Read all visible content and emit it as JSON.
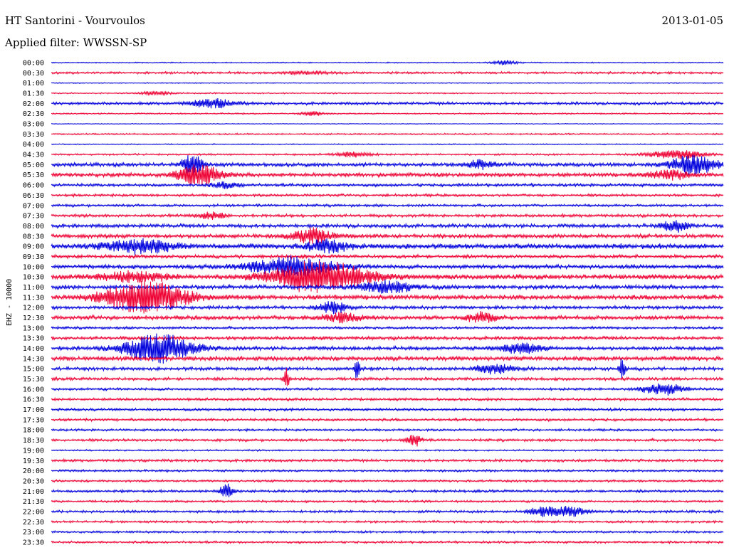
{
  "header": {
    "station": "HT Santorini - Vourvoulos",
    "date": "2013-01-05",
    "filter": "Applied filter: WWSSN-SP"
  },
  "chart_data": {
    "type": "line",
    "title": "HT Santorini - Vourvoulos",
    "ylabel": "EHZ - 10000",
    "row_labels": [
      "00:00",
      "00:30",
      "01:00",
      "01:30",
      "02:00",
      "02:30",
      "03:00",
      "03:30",
      "04:00",
      "04:30",
      "05:00",
      "05:30",
      "06:00",
      "06:30",
      "07:00",
      "07:30",
      "08:00",
      "08:30",
      "09:00",
      "09:30",
      "10:00",
      "10:30",
      "11:00",
      "11:30",
      "12:00",
      "12:30",
      "13:00",
      "13:30",
      "14:00",
      "14:30",
      "15:00",
      "15:30",
      "16:00",
      "16:30",
      "17:00",
      "17:30",
      "18:00",
      "18:30",
      "19:00",
      "19:30",
      "20:00",
      "20:30",
      "21:00",
      "21:30",
      "22:00",
      "22:30",
      "23:00",
      "23:30"
    ],
    "colors": [
      "#0000dd",
      "#ee0033"
    ],
    "grid": false,
    "row_noise": [
      0.6,
      1.2,
      0.5,
      0.7,
      1.5,
      0.8,
      0.4,
      0.8,
      0.6,
      1.0,
      2.0,
      2.2,
      1.6,
      1.4,
      1.4,
      1.6,
      2.0,
      2.2,
      2.8,
      1.8,
      2.2,
      2.6,
      2.2,
      2.6,
      1.8,
      2.2,
      1.4,
      1.8,
      2.0,
      2.4,
      1.8,
      1.6,
      1.4,
      1.4,
      1.4,
      1.4,
      1.2,
      1.4,
      0.9,
      1.4,
      1.2,
      1.2,
      1.4,
      1.2,
      1.4,
      1.2,
      1.2,
      1.2
    ],
    "events": [
      {
        "row": 0,
        "t": 0.675,
        "amp": 3,
        "dur": 0.02
      },
      {
        "row": 1,
        "t": 0.38,
        "amp": 2,
        "dur": 0.03
      },
      {
        "row": 3,
        "t": 0.155,
        "amp": 3,
        "dur": 0.02
      },
      {
        "row": 4,
        "t": 0.24,
        "amp": 6,
        "dur": 0.03
      },
      {
        "row": 5,
        "t": 0.39,
        "amp": 3,
        "dur": 0.015
      },
      {
        "row": 9,
        "t": 0.45,
        "amp": 4,
        "dur": 0.025
      },
      {
        "row": 9,
        "t": 0.93,
        "amp": 6,
        "dur": 0.04
      },
      {
        "row": 10,
        "t": 0.21,
        "amp": 14,
        "dur": 0.015
      },
      {
        "row": 10,
        "t": 0.64,
        "amp": 6,
        "dur": 0.02
      },
      {
        "row": 10,
        "t": 0.955,
        "amp": 13,
        "dur": 0.035
      },
      {
        "row": 11,
        "t": 0.22,
        "amp": 15,
        "dur": 0.03
      },
      {
        "row": 11,
        "t": 0.92,
        "amp": 6,
        "dur": 0.03
      },
      {
        "row": 12,
        "t": 0.26,
        "amp": 4,
        "dur": 0.02
      },
      {
        "row": 15,
        "t": 0.24,
        "amp": 5,
        "dur": 0.02
      },
      {
        "row": 16,
        "t": 0.93,
        "amp": 8,
        "dur": 0.02
      },
      {
        "row": 17,
        "t": 0.39,
        "amp": 10,
        "dur": 0.03
      },
      {
        "row": 18,
        "t": 0.13,
        "amp": 9,
        "dur": 0.05
      },
      {
        "row": 18,
        "t": 0.41,
        "amp": 8,
        "dur": 0.03
      },
      {
        "row": 20,
        "t": 0.36,
        "amp": 14,
        "dur": 0.06
      },
      {
        "row": 21,
        "t": 0.4,
        "amp": 22,
        "dur": 0.07
      },
      {
        "row": 21,
        "t": 0.12,
        "amp": 7,
        "dur": 0.05
      },
      {
        "row": 22,
        "t": 0.5,
        "amp": 8,
        "dur": 0.04
      },
      {
        "row": 23,
        "t": 0.14,
        "amp": 22,
        "dur": 0.06
      },
      {
        "row": 24,
        "t": 0.42,
        "amp": 8,
        "dur": 0.02
      },
      {
        "row": 25,
        "t": 0.43,
        "amp": 6,
        "dur": 0.03
      },
      {
        "row": 25,
        "t": 0.64,
        "amp": 7,
        "dur": 0.02
      },
      {
        "row": 28,
        "t": 0.16,
        "amp": 20,
        "dur": 0.05
      },
      {
        "row": 28,
        "t": 0.7,
        "amp": 7,
        "dur": 0.03
      },
      {
        "row": 30,
        "t": 0.455,
        "amp": 18,
        "dur": 0.004
      },
      {
        "row": 30,
        "t": 0.85,
        "amp": 20,
        "dur": 0.004
      },
      {
        "row": 30,
        "t": 0.66,
        "amp": 6,
        "dur": 0.03
      },
      {
        "row": 31,
        "t": 0.35,
        "amp": 16,
        "dur": 0.004
      },
      {
        "row": 32,
        "t": 0.91,
        "amp": 8,
        "dur": 0.03
      },
      {
        "row": 37,
        "t": 0.54,
        "amp": 9,
        "dur": 0.01
      },
      {
        "row": 42,
        "t": 0.26,
        "amp": 10,
        "dur": 0.01
      },
      {
        "row": 44,
        "t": 0.73,
        "amp": 6,
        "dur": 0.02
      },
      {
        "row": 44,
        "t": 0.77,
        "amp": 7,
        "dur": 0.025
      }
    ]
  }
}
